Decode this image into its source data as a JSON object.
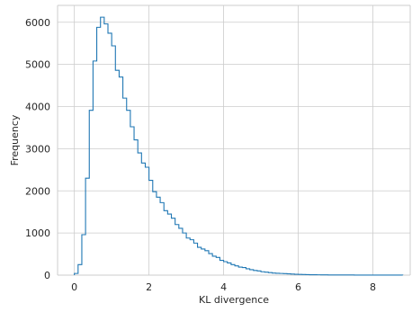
{
  "chart_data": {
    "type": "histogram",
    "title": "",
    "xlabel": "KL divergence",
    "ylabel": "Frequency",
    "xlim": [
      -0.45,
      9.0
    ],
    "ylim": [
      0,
      6400
    ],
    "xticks": [
      0,
      2,
      4,
      6,
      8
    ],
    "yticks": [
      0,
      1000,
      2000,
      3000,
      4000,
      5000,
      6000
    ],
    "grid": true,
    "color": "#1f77b4",
    "bin_width": 0.1,
    "bin_start": 0.0,
    "counts": [
      40,
      250,
      960,
      2300,
      3910,
      5080,
      5880,
      6120,
      5960,
      5740,
      5440,
      4860,
      4700,
      4200,
      3910,
      3520,
      3210,
      2900,
      2660,
      2560,
      2250,
      1980,
      1850,
      1720,
      1530,
      1450,
      1350,
      1200,
      1110,
      1000,
      880,
      840,
      760,
      660,
      620,
      580,
      510,
      450,
      420,
      350,
      320,
      290,
      250,
      220,
      190,
      180,
      150,
      130,
      110,
      100,
      80,
      70,
      60,
      50,
      45,
      40,
      35,
      30,
      25,
      20,
      18,
      15,
      12,
      10,
      9,
      8,
      7,
      6,
      5,
      5,
      4,
      4,
      3,
      3,
      3,
      2,
      2,
      2,
      2,
      1,
      1,
      1,
      1,
      1,
      1,
      1,
      1,
      1
    ]
  }
}
